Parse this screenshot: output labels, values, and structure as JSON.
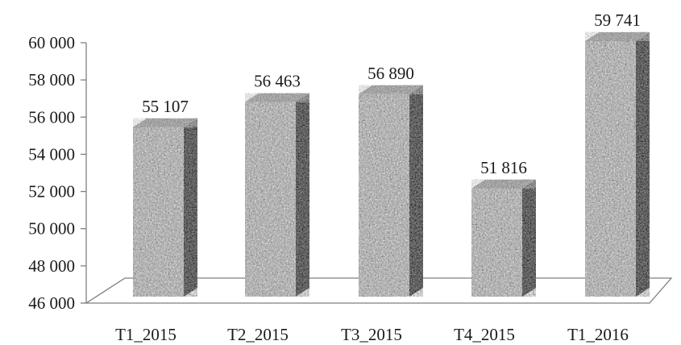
{
  "chart_data": {
    "type": "bar",
    "style": "3d-column",
    "categories": [
      "T1_2015",
      "T2_2015",
      "T3_2015",
      "T4_2015",
      "T1_2016"
    ],
    "values": [
      55107,
      56463,
      56890,
      51816,
      59741
    ],
    "data_labels": [
      "55 107",
      "56 463",
      "56 890",
      "51 816",
      "59 741"
    ],
    "ylim": [
      46000,
      60000
    ],
    "y_ticks": [
      46000,
      48000,
      50000,
      52000,
      54000,
      56000,
      58000,
      60000
    ],
    "y_tick_labels": [
      "46 000",
      "48 000",
      "50 000",
      "52 000",
      "54 000",
      "56 000",
      "58 000",
      "60 000"
    ],
    "title": "",
    "xlabel": "",
    "ylabel": "",
    "grid": false,
    "legend": "none",
    "colors": {
      "bar_texture_light": "#d9d9d9",
      "bar_texture_dark": "#5a5a5a",
      "bar_side_dark": "#4a4a4a",
      "axis": "#7f7f7f"
    }
  }
}
